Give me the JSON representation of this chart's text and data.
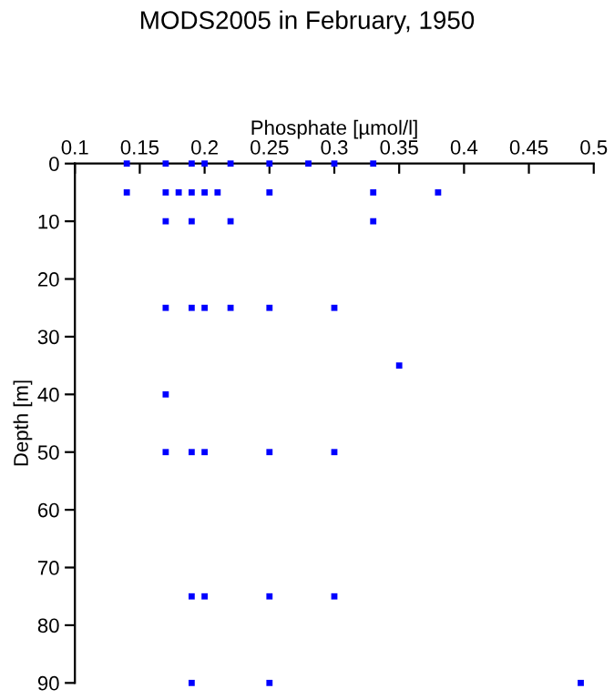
{
  "chart_data": {
    "type": "scatter",
    "title": "MODS2005 in February, 1950",
    "xlabel": "Phosphate [µmol/l]",
    "ylabel": "Depth [m]",
    "series": [
      {
        "color": "#0000ff",
        "x": [
          0.14,
          0.17,
          0.19,
          0.2,
          0.22,
          0.25,
          0.28,
          0.3,
          0.33,
          0.14,
          0.17,
          0.18,
          0.19,
          0.2,
          0.21,
          0.25,
          0.33,
          0.38,
          0.17,
          0.19,
          0.22,
          0.33,
          0.17,
          0.19,
          0.2,
          0.22,
          0.25,
          0.3,
          0.35,
          0.17,
          0.17,
          0.19,
          0.2,
          0.25,
          0.3,
          0.19,
          0.2,
          0.25,
          0.3,
          0.19,
          0.25,
          0.49
        ],
        "values": [
          0,
          0,
          0,
          0,
          0,
          0,
          0,
          0,
          0,
          5,
          5,
          5,
          5,
          5,
          5,
          5,
          5,
          5,
          10,
          10,
          10,
          10,
          25,
          25,
          25,
          25,
          25,
          25,
          35,
          40,
          50,
          50,
          50,
          50,
          50,
          75,
          75,
          75,
          75,
          90,
          90,
          90
        ]
      }
    ],
    "xlim": [
      0.1,
      0.5
    ],
    "xticks": [
      0.1,
      0.15,
      0.2,
      0.25,
      0.3,
      0.35,
      0.4,
      0.45,
      0.5
    ],
    "ylim": [
      90,
      0
    ],
    "yticks": [
      0,
      10,
      20,
      30,
      40,
      50,
      60,
      70,
      80,
      90
    ],
    "marker": "square",
    "grid": false,
    "legend": false
  }
}
